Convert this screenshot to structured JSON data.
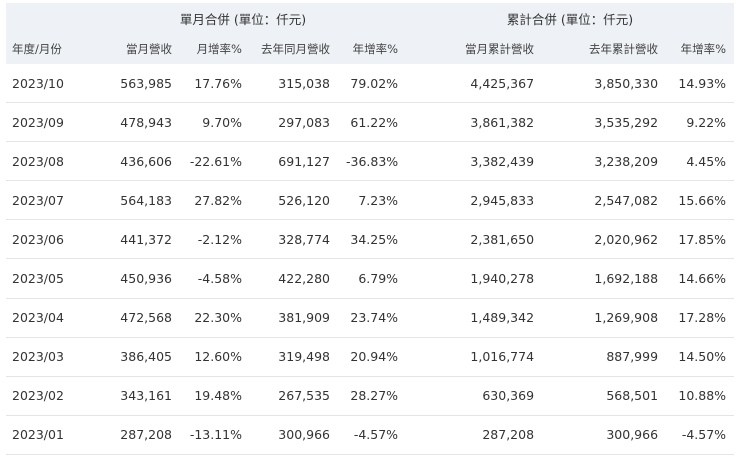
{
  "header": {
    "group_monthly": "單月合併 (單位：仟元)",
    "group_cumulative": "累計合併 (單位：仟元)",
    "columns": [
      "年度/月份",
      "當月營收",
      "月增率%",
      "去年同月營收",
      "年增率%",
      "當月累計營收",
      "去年累計營收",
      "年增率%"
    ]
  },
  "rows": [
    [
      "2023/10",
      "563,985",
      "17.76%",
      "315,038",
      "79.02%",
      "4,425,367",
      "3,850,330",
      "14.93%"
    ],
    [
      "2023/09",
      "478,943",
      "9.70%",
      "297,083",
      "61.22%",
      "3,861,382",
      "3,535,292",
      "9.22%"
    ],
    [
      "2023/08",
      "436,606",
      "-22.61%",
      "691,127",
      "-36.83%",
      "3,382,439",
      "3,238,209",
      "4.45%"
    ],
    [
      "2023/07",
      "564,183",
      "27.82%",
      "526,120",
      "7.23%",
      "2,945,833",
      "2,547,082",
      "15.66%"
    ],
    [
      "2023/06",
      "441,372",
      "-2.12%",
      "328,774",
      "34.25%",
      "2,381,650",
      "2,020,962",
      "17.85%"
    ],
    [
      "2023/05",
      "450,936",
      "-4.58%",
      "422,280",
      "6.79%",
      "1,940,278",
      "1,692,188",
      "14.66%"
    ],
    [
      "2023/04",
      "472,568",
      "22.30%",
      "381,909",
      "23.74%",
      "1,489,342",
      "1,269,908",
      "17.28%"
    ],
    [
      "2023/03",
      "386,405",
      "12.60%",
      "319,498",
      "20.94%",
      "1,016,774",
      "887,999",
      "14.50%"
    ],
    [
      "2023/02",
      "343,161",
      "19.48%",
      "267,535",
      "28.27%",
      "630,369",
      "568,501",
      "10.88%"
    ],
    [
      "2023/01",
      "287,208",
      "-13.11%",
      "300,966",
      "-4.57%",
      "287,208",
      "300,966",
      "-4.57%"
    ]
  ]
}
